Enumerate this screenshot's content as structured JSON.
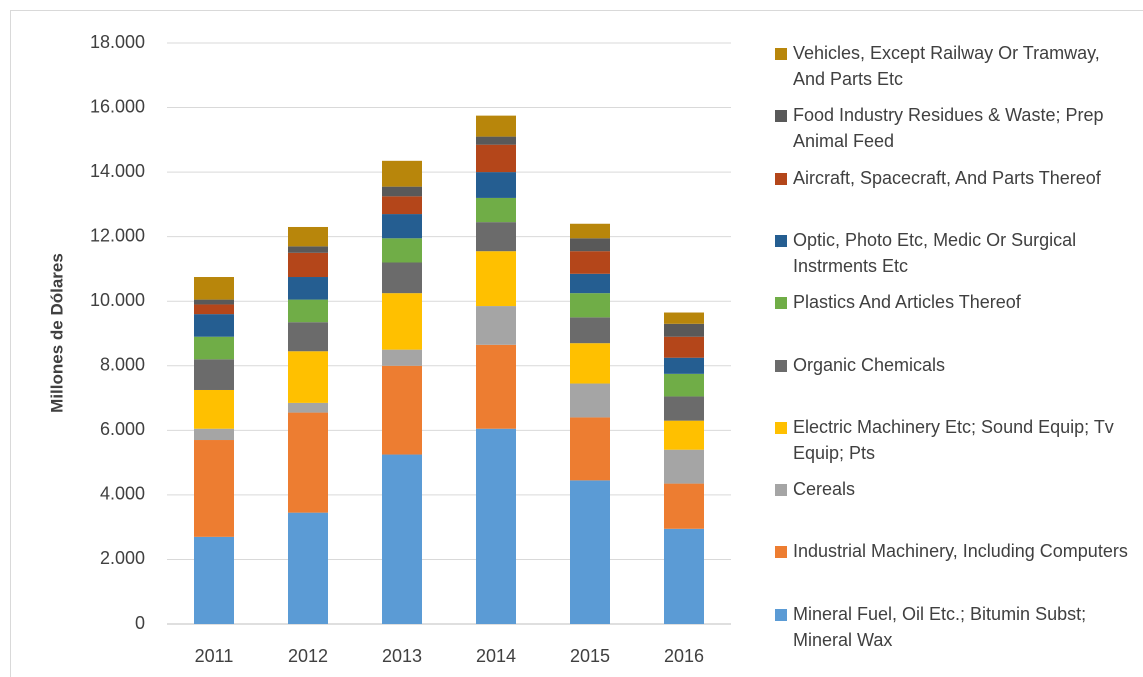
{
  "chart_data": {
    "type": "stacked_bar",
    "y_axis_label": "Millones de Dólares",
    "categories": [
      "2011",
      "2012",
      "2013",
      "2014",
      "2015",
      "2016"
    ],
    "ylim": [
      0,
      18000
    ],
    "yticks": [
      0,
      {
        "value": 2000,
        "label": "2.000"
      },
      {
        "value": 4000,
        "label": "4.000"
      },
      {
        "value": 6000,
        "label": "6.000"
      },
      {
        "value": 8000,
        "label": "8.000"
      },
      {
        "value": 10000,
        "label": "10.000"
      },
      {
        "value": 12000,
        "label": "12.000"
      },
      {
        "value": 14000,
        "label": "14.000"
      },
      {
        "value": 16000,
        "label": "16.000"
      },
      {
        "value": 18000,
        "label": "18.000"
      }
    ],
    "grid": true,
    "legend": "right",
    "series": [
      {
        "name": "Mineral Fuel, Oil Etc.; Bitumin Subst; Mineral Wax",
        "color": "#5b9bd5",
        "values": [
          2700,
          3450,
          5250,
          6050,
          4450,
          2950
        ]
      },
      {
        "name": "Industrial Machinery, Including Computers",
        "color": "#ed7d31",
        "values": [
          3000,
          3100,
          2750,
          2600,
          1950,
          1400
        ]
      },
      {
        "name": "Cereals",
        "color": "#a5a5a5",
        "values": [
          350,
          300,
          500,
          1200,
          1050,
          1050
        ]
      },
      {
        "name": "Electric Machinery Etc; Sound Equip; Tv Equip; Pts",
        "color": "#ffc000",
        "values": [
          1200,
          1600,
          1750,
          1700,
          1250,
          900
        ]
      },
      {
        "name": "Organic Chemicals",
        "color": "#6b6b6b",
        "values": [
          950,
          900,
          950,
          900,
          800,
          750
        ]
      },
      {
        "name": "Plastics And Articles Thereof",
        "color": "#70ad47",
        "values": [
          700,
          700,
          750,
          750,
          750,
          700
        ]
      },
      {
        "name": "Optic, Photo Etc, Medic Or Surgical Instrments Etc",
        "color": "#255e91",
        "values": [
          700,
          700,
          750,
          800,
          600,
          500
        ]
      },
      {
        "name": "Aircraft, Spacecraft, And Parts Thereof",
        "color": "#b4461a",
        "values": [
          300,
          750,
          550,
          850,
          700,
          650
        ]
      },
      {
        "name": "Food Industry Residues & Waste; Prep Animal Feed",
        "color": "#595959",
        "values": [
          150,
          200,
          300,
          250,
          400,
          400
        ]
      },
      {
        "name": "Vehicles, Except Railway Or Tramway, And Parts Etc",
        "color": "#b8860b",
        "values": [
          700,
          600,
          800,
          650,
          450,
          350
        ]
      }
    ]
  }
}
